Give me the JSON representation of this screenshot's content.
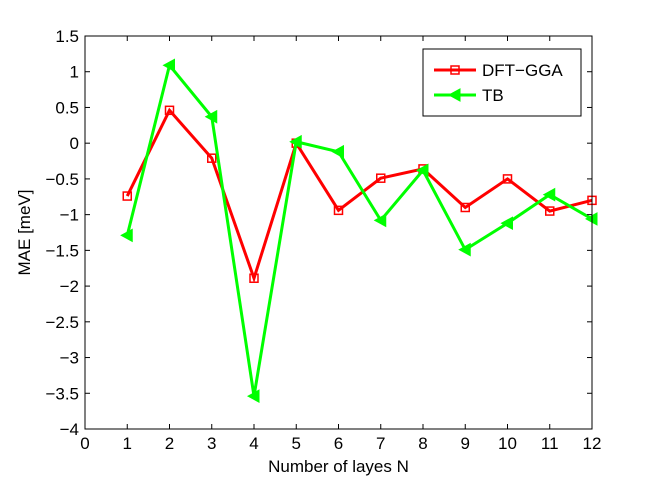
{
  "chart_data": {
    "type": "line",
    "xlabel": "Number of layes N",
    "ylabel": "MAE [meV]",
    "xlim": [
      0,
      12
    ],
    "ylim": [
      -4,
      1.5
    ],
    "xticks": [
      0,
      1,
      2,
      3,
      4,
      5,
      6,
      7,
      8,
      9,
      10,
      11,
      12
    ],
    "yticks": [
      -4,
      -3.5,
      -3,
      -2.5,
      -2,
      -1.5,
      -1,
      -0.5,
      0,
      0.5,
      1,
      1.5
    ],
    "ytick_labels": [
      "−4",
      "−3.5",
      "−3",
      "−2.5",
      "−2",
      "−1.5",
      "−1",
      "−0.5",
      "0",
      "0.5",
      "1",
      "1.5"
    ],
    "grid": false,
    "legend_position": "top-right",
    "x": [
      1,
      2,
      3,
      4,
      5,
      6,
      7,
      8,
      9,
      10,
      11,
      12
    ],
    "series": [
      {
        "name": "DFT−GGA",
        "color": "#ff0000",
        "marker": "square",
        "values": [
          -0.74,
          0.46,
          -0.21,
          -1.89,
          0.0,
          -0.94,
          -0.49,
          -0.36,
          -0.9,
          -0.5,
          -0.95,
          -0.8
        ]
      },
      {
        "name": "TB",
        "color": "#00ff00",
        "marker": "triangle-left",
        "values": [
          -1.29,
          1.09,
          0.37,
          -3.54,
          0.02,
          -0.12,
          -1.08,
          -0.38,
          -1.49,
          -1.12,
          -0.72,
          -1.06
        ]
      }
    ]
  }
}
